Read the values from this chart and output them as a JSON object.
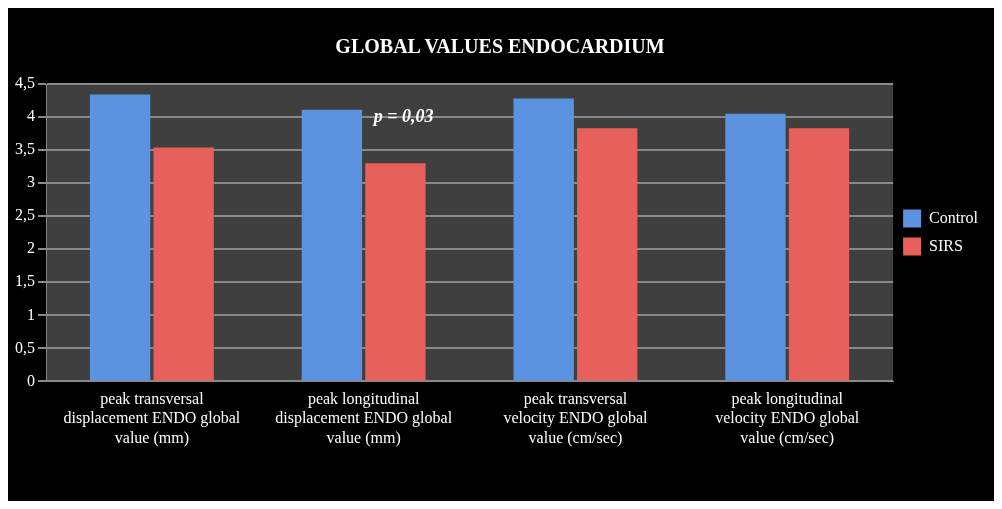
{
  "chart_data": {
    "type": "bar",
    "title": "GLOBAL VALUES ENDOCARDIUM",
    "categories": [
      "peak transversal displacement ENDO global value (mm)",
      "peak longitudinal displacement ENDO global value (mm)",
      "peak transversal velocity ENDO global value (cm/sec)",
      "peak longitudinal velocity ENDO global value (cm/sec)"
    ],
    "series": [
      {
        "name": "Control",
        "color": "#5b93e0",
        "values": [
          4.34,
          4.11,
          4.28,
          4.05
        ]
      },
      {
        "name": "SIRS",
        "color": "#e8605c",
        "values": [
          3.54,
          3.3,
          3.83,
          3.83
        ]
      }
    ],
    "ylim": [
      0,
      4.5
    ],
    "yticks": [
      0,
      {
        "value": 0.5,
        "label": "0,5"
      },
      1,
      {
        "value": 1.5,
        "label": "1,5"
      },
      2,
      {
        "value": 2.5,
        "label": "2,5"
      },
      3,
      {
        "value": 3.5,
        "label": "3,5"
      },
      4,
      {
        "value": 4.5,
        "label": "4,5"
      }
    ],
    "grid": "y",
    "legend": "right",
    "annotations": [
      {
        "text": "p = 0,03",
        "x": "peak longitudinal displacement ENDO global value (mm)",
        "y": 4
      }
    ]
  }
}
